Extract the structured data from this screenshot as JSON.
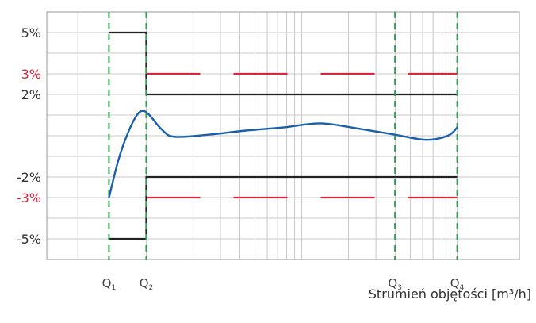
{
  "chart_data": {
    "type": "line",
    "title": "",
    "xlabel": "Strumień objętości [m³/h]",
    "ylabel": "",
    "y_ticks": [
      {
        "value": 5,
        "label": "5%",
        "color": "#333333"
      },
      {
        "value": 3,
        "label": "3%",
        "color": "#d7263d"
      },
      {
        "value": 2,
        "label": "2%",
        "color": "#333333"
      },
      {
        "value": -2,
        "label": "-2%",
        "color": "#333333"
      },
      {
        "value": -3,
        "label": "-3%",
        "color": "#d7263d"
      },
      {
        "value": -5,
        "label": "-5%",
        "color": "#333333"
      }
    ],
    "ylim": [
      -6,
      6
    ],
    "x_markers": [
      {
        "name": "Q1",
        "label": "Q",
        "sub": "1",
        "x": 1.4
      },
      {
        "name": "Q2",
        "label": "Q",
        "sub": "2",
        "x": 2.0
      },
      {
        "name": "Q3",
        "label": "Q",
        "sub": "3",
        "x": 6.0
      },
      {
        "name": "Q4",
        "label": "Q",
        "sub": "4",
        "x": 7.0
      }
    ],
    "xlim": [
      0.4,
      8.0
    ],
    "grid": true,
    "limits_black": [
      {
        "x": [
          1.4,
          2.0,
          2.0,
          7.0
        ],
        "y": [
          5,
          5,
          2,
          2
        ]
      },
      {
        "x": [
          1.4,
          2.0,
          2.0,
          7.0
        ],
        "y": [
          -5,
          -5,
          -2,
          -2
        ]
      }
    ],
    "limits_red_dashed": [
      {
        "x": [
          2.0,
          7.0
        ],
        "y": [
          3,
          3
        ]
      },
      {
        "x": [
          2.0,
          7.0
        ],
        "y": [
          -3,
          -3
        ]
      }
    ],
    "error_curve": {
      "x": [
        1.4,
        1.55,
        1.7,
        1.85,
        1.95,
        2.05,
        2.25,
        2.45,
        3.0,
        3.6,
        4.2,
        4.8,
        5.4,
        6.0,
        6.5,
        6.85,
        7.0
      ],
      "y": [
        -3.0,
        -1.2,
        0.1,
        1.0,
        1.2,
        1.0,
        0.3,
        -0.05,
        0.05,
        0.25,
        0.4,
        0.6,
        0.35,
        0.05,
        -0.2,
        0.0,
        0.4
      ]
    },
    "colors": {
      "curve": "#1a5fa8",
      "limits": "#222222",
      "red_limits": "#d7263d",
      "markers": "#2e9e4f",
      "grid": "#c8c8c8"
    }
  }
}
